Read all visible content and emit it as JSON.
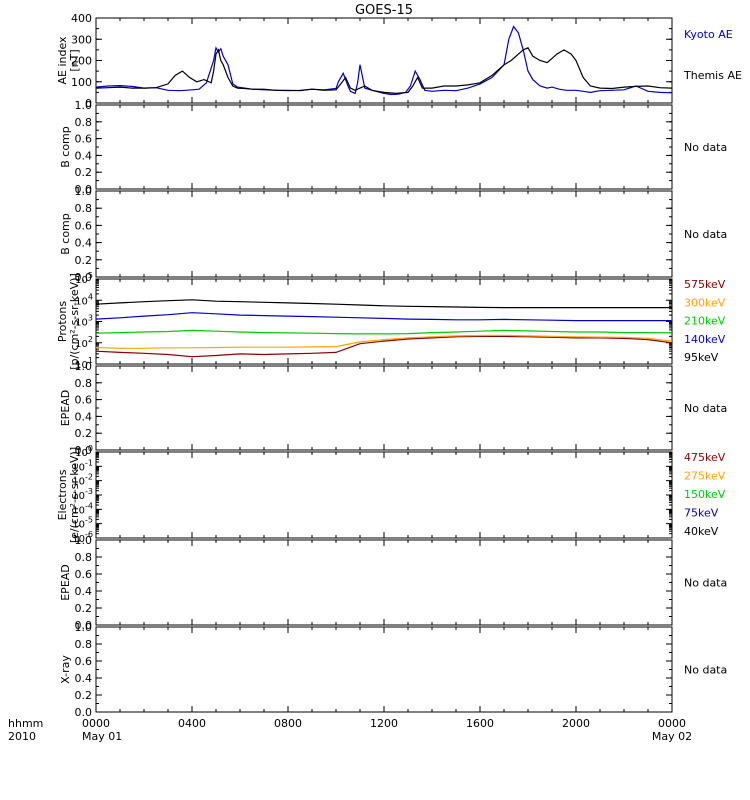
{
  "figure": {
    "title": "GOES-15",
    "time_label_top": "hhmm",
    "time_label_bottom": "2010",
    "time_ticks": [
      {
        "label": "0000",
        "sub": "May 01",
        "hour": 0
      },
      {
        "label": "0400",
        "sub": "",
        "hour": 4
      },
      {
        "label": "0800",
        "sub": "",
        "hour": 8
      },
      {
        "label": "1200",
        "sub": "",
        "hour": 12
      },
      {
        "label": "1600",
        "sub": "",
        "hour": 16
      },
      {
        "label": "2000",
        "sub": "",
        "hour": 20
      },
      {
        "label": "0000",
        "sub": "May 02",
        "hour": 24
      }
    ]
  },
  "chart_data": [
    {
      "type": "line",
      "panel": "ae",
      "ylabel_line1": "AE index",
      "ylabel_line2": "[nT]",
      "ylim": [
        0,
        400
      ],
      "yticks": [
        0,
        100,
        200,
        300,
        400
      ],
      "x_units": "hours",
      "xlim": [
        0,
        24
      ],
      "series": [
        {
          "name": "Kyoto AE",
          "color": "#0000cc",
          "x": [
            0,
            0.5,
            1,
            1.5,
            2,
            2.5,
            3,
            3.5,
            4,
            4.3,
            4.6,
            4.9,
            5.0,
            5.1,
            5.2,
            5.3,
            5.5,
            5.7,
            5.9,
            6.2,
            6.5,
            7,
            7.5,
            8,
            8.5,
            9,
            9.5,
            10,
            10.1,
            10.3,
            10.5,
            10.6,
            10.7,
            10.8,
            10.9,
            11.0,
            11.2,
            11.5,
            12,
            12.3,
            12.6,
            12.9,
            13.1,
            13.3,
            13.5,
            13.7,
            14.0,
            14.5,
            15,
            15.5,
            16,
            16.5,
            17,
            17.2,
            17.4,
            17.6,
            17.8,
            18.0,
            18.2,
            18.5,
            18.8,
            19.0,
            19.3,
            19.6,
            20,
            20.3,
            20.6,
            21,
            21.5,
            22,
            22.5,
            23,
            23.5,
            24
          ],
          "y": [
            75,
            80,
            82,
            78,
            70,
            72,
            60,
            58,
            62,
            65,
            95,
            200,
            260,
            240,
            255,
            220,
            180,
            90,
            75,
            70,
            65,
            62,
            60,
            58,
            60,
            65,
            62,
            68,
            100,
            140,
            80,
            55,
            50,
            45,
            95,
            180,
            70,
            60,
            45,
            40,
            42,
            50,
            80,
            150,
            110,
            60,
            55,
            60,
            58,
            70,
            90,
            120,
            180,
            300,
            360,
            330,
            250,
            150,
            110,
            80,
            70,
            75,
            65,
            60,
            60,
            55,
            50,
            58,
            60,
            62,
            80,
            55,
            50,
            48
          ]
        },
        {
          "name": "Themis AE",
          "color": "#000000",
          "x": [
            0,
            0.5,
            1,
            1.5,
            2,
            2.5,
            3,
            3.3,
            3.6,
            3.9,
            4.2,
            4.5,
            4.8,
            4.9,
            5.0,
            5.1,
            5.2,
            5.3,
            5.5,
            5.7,
            5.9,
            6.2,
            6.5,
            7,
            7.5,
            8,
            8.5,
            9,
            9.5,
            10,
            10.2,
            10.4,
            10.6,
            10.8,
            11.0,
            11.2,
            11.5,
            12,
            12.5,
            13,
            13.2,
            13.4,
            13.6,
            14,
            14.5,
            15,
            15.5,
            16,
            16.5,
            17,
            17.3,
            17.6,
            17.8,
            18.0,
            18.2,
            18.5,
            18.8,
            19.0,
            19.2,
            19.5,
            19.8,
            20.0,
            20.3,
            20.6,
            21,
            21.5,
            22,
            22.5,
            23,
            23.5,
            24
          ],
          "y": [
            70,
            72,
            75,
            70,
            70,
            72,
            90,
            130,
            150,
            120,
            100,
            110,
            95,
            150,
            230,
            250,
            200,
            180,
            120,
            80,
            70,
            68,
            65,
            65,
            60,
            60,
            58,
            65,
            60,
            62,
            90,
            120,
            70,
            60,
            70,
            80,
            60,
            50,
            45,
            50,
            80,
            120,
            70,
            70,
            80,
            80,
            85,
            95,
            130,
            180,
            200,
            230,
            250,
            260,
            220,
            200,
            190,
            210,
            230,
            250,
            230,
            200,
            120,
            80,
            70,
            68,
            75,
            78,
            80,
            72,
            70
          ]
        }
      ]
    },
    {
      "type": "line",
      "panel": "b1",
      "ylabel": "B comp",
      "ylim": [
        0,
        1
      ],
      "yticks": [
        0.0,
        0.2,
        0.4,
        0.6,
        0.8,
        1.0
      ],
      "status": "No data",
      "series": []
    },
    {
      "type": "line",
      "panel": "b2",
      "ylabel": "B comp",
      "ylim": [
        0,
        1
      ],
      "yticks": [
        0.0,
        0.2,
        0.4,
        0.6,
        0.8,
        1.0
      ],
      "status": "No data",
      "series": []
    },
    {
      "type": "line",
      "panel": "protons",
      "ylabel_line1": "Protons",
      "ylabel_line2": "[p/(cm²-s-sr-keV)]",
      "log": true,
      "ylim_exp": [
        1,
        5
      ],
      "yticks_exp": [
        1,
        2,
        3,
        4,
        5
      ],
      "x_units": "hours",
      "xlim": [
        0,
        24
      ],
      "series": [
        {
          "name": "575keV",
          "color": "#8b0000",
          "x": [
            0,
            1,
            2,
            3,
            4,
            5,
            6,
            7,
            8,
            9,
            10,
            11,
            12,
            13,
            14,
            15,
            16,
            17,
            18,
            19,
            20,
            21,
            22,
            23,
            24
          ],
          "y": [
            40,
            35,
            32,
            28,
            22,
            25,
            30,
            28,
            30,
            32,
            35,
            90,
            120,
            150,
            170,
            190,
            200,
            200,
            190,
            180,
            170,
            170,
            160,
            140,
            100
          ]
        },
        {
          "name": "300keV",
          "color": "#ffa500",
          "x": [
            0,
            1,
            2,
            3,
            4,
            5,
            6,
            7,
            8,
            9,
            10,
            11,
            12,
            13,
            14,
            15,
            16,
            17,
            18,
            19,
            20,
            21,
            22,
            23,
            24
          ],
          "y": [
            60,
            55,
            55,
            58,
            58,
            60,
            62,
            62,
            62,
            64,
            66,
            110,
            140,
            170,
            190,
            210,
            220,
            225,
            210,
            200,
            190,
            185,
            180,
            160,
            120
          ]
        },
        {
          "name": "210keV",
          "color": "#00cc00",
          "x": [
            0,
            1,
            2,
            3,
            4,
            5,
            6,
            7,
            8,
            9,
            10,
            11,
            12,
            13,
            14,
            15,
            16,
            17,
            18,
            19,
            20,
            21,
            22,
            23,
            24
          ],
          "y": [
            280,
            300,
            320,
            340,
            380,
            350,
            320,
            300,
            290,
            280,
            270,
            260,
            260,
            270,
            300,
            320,
            350,
            380,
            360,
            340,
            320,
            320,
            300,
            300,
            290
          ]
        },
        {
          "name": "140keV",
          "color": "#0000cc",
          "x": [
            0,
            1,
            2,
            3,
            4,
            5,
            6,
            7,
            8,
            9,
            10,
            11,
            12,
            13,
            14,
            15,
            16,
            17,
            18,
            19,
            20,
            21,
            22,
            23,
            24
          ],
          "y": [
            1300,
            1500,
            1800,
            2100,
            2600,
            2300,
            2000,
            1900,
            1800,
            1700,
            1600,
            1500,
            1400,
            1300,
            1250,
            1200,
            1200,
            1250,
            1200,
            1150,
            1100,
            1100,
            1100,
            1100,
            1100
          ]
        },
        {
          "name": "95keV",
          "color": "#000000",
          "x": [
            0,
            1,
            2,
            3,
            4,
            5,
            6,
            7,
            8,
            9,
            10,
            11,
            12,
            13,
            14,
            15,
            16,
            17,
            18,
            19,
            20,
            21,
            22,
            23,
            24
          ],
          "y": [
            6500,
            7500,
            8500,
            9500,
            10500,
            9000,
            8500,
            8000,
            7500,
            7000,
            6500,
            6000,
            5500,
            5200,
            5000,
            4800,
            4600,
            4500,
            4500,
            4500,
            4500,
            4500,
            4500,
            4500,
            4500
          ]
        }
      ]
    },
    {
      "type": "line",
      "panel": "epead1",
      "ylabel": "EPEAD",
      "ylim": [
        0,
        1
      ],
      "yticks": [
        0.0,
        0.2,
        0.4,
        0.6,
        0.8,
        1.0
      ],
      "status": "No data",
      "series": []
    },
    {
      "type": "line",
      "panel": "electrons",
      "ylabel_line1": "Electrons",
      "ylabel_line2": "[e/(cm²-s-sr-keV)]",
      "log": true,
      "ylim_exp": [
        -6,
        0
      ],
      "yticks_exp": [
        0,
        -1,
        -2,
        -3,
        -4,
        -5,
        -6
      ],
      "legend": [
        {
          "name": "475keV",
          "color": "#8b0000"
        },
        {
          "name": "275keV",
          "color": "#ffa500"
        },
        {
          "name": "150keV",
          "color": "#00cc00"
        },
        {
          "name": "75keV",
          "color": "#0000cc"
        },
        {
          "name": "40keV",
          "color": "#000000"
        }
      ],
      "series": []
    },
    {
      "type": "line",
      "panel": "epead2",
      "ylabel": "EPEAD",
      "ylim": [
        0,
        1
      ],
      "yticks": [
        0.0,
        0.2,
        0.4,
        0.6,
        0.8,
        1.0
      ],
      "status": "No data",
      "series": []
    },
    {
      "type": "line",
      "panel": "xray",
      "ylabel": "X-ray",
      "ylim": [
        0,
        1
      ],
      "yticks": [
        0.0,
        0.2,
        0.4,
        0.6,
        0.8,
        1.0
      ],
      "status": "No data",
      "series": []
    }
  ]
}
